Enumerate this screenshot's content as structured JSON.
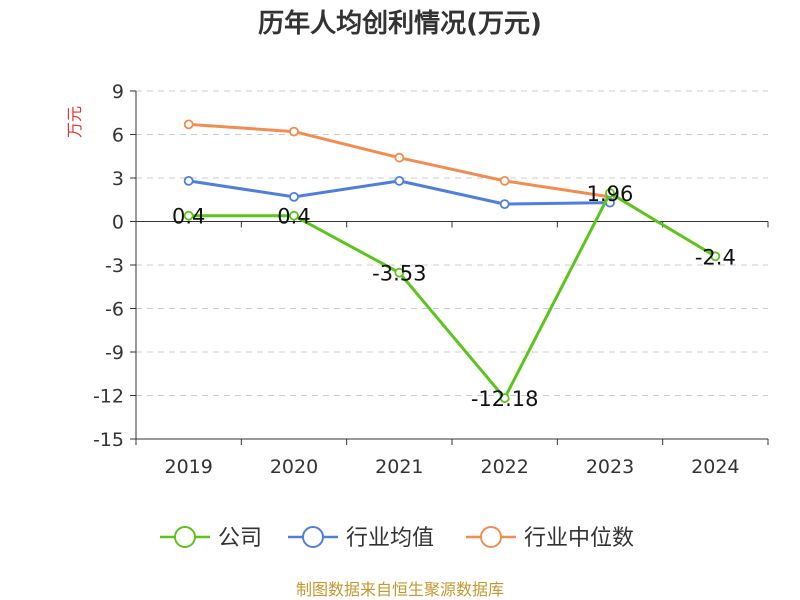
{
  "chart_data": {
    "type": "line",
    "title": "历年人均创利情况(万元)",
    "ylabel": "万元",
    "xlabel": "",
    "categories": [
      "2019",
      "2020",
      "2021",
      "2022",
      "2023",
      "2024"
    ],
    "ylim": [
      -15,
      9
    ],
    "yticks": [
      9,
      6,
      3,
      0,
      -3,
      -6,
      -9,
      -12,
      -15
    ],
    "ytick_labels": [
      "9",
      "6",
      "3",
      "0",
      "-3",
      "-6",
      "-9",
      "-12",
      "-15"
    ],
    "grid": true,
    "legend_position": "bottom-center",
    "series": [
      {
        "name": "公司",
        "color": "#5cc41c",
        "values": [
          0.4,
          0.4,
          -3.53,
          -12.18,
          1.96,
          -2.4
        ],
        "labels": [
          "0.4",
          "0.4",
          "-3.53",
          "-12.18",
          "1.96",
          "-2.4"
        ]
      },
      {
        "name": "行业均值",
        "color": "#4f7fdd",
        "values": [
          2.8,
          1.7,
          2.8,
          1.2,
          1.3,
          null
        ]
      },
      {
        "name": "行业中位数",
        "color": "#f28d52",
        "values": [
          6.7,
          6.2,
          4.4,
          2.8,
          1.7,
          null
        ]
      }
    ]
  },
  "source": "制图数据来自恒生聚源数据库",
  "colors": {
    "title": "#333333",
    "ylabel": "#e5322d",
    "source": "#c4982f",
    "grid": "#cccccc",
    "axis": "#333333"
  }
}
